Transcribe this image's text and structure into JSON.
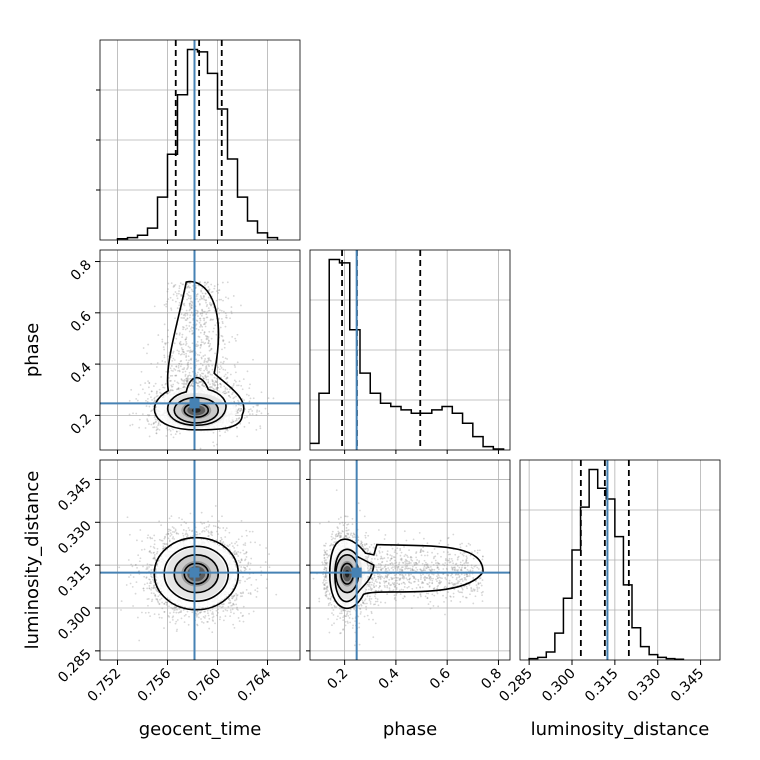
{
  "chart_data": {
    "type": "corner",
    "parameters": [
      "geocent_time",
      "phase",
      "luminosity_distance"
    ],
    "axis_labels": {
      "x": [
        "geocent_time",
        "phase",
        "luminosity_distance"
      ],
      "y": [
        "phase",
        "luminosity_distance"
      ]
    },
    "ranges": {
      "geocent_time": [
        0.7506,
        0.7666
      ],
      "phase": [
        0.065,
        0.845
      ],
      "luminosity_distance": [
        0.2818,
        0.3518
      ]
    },
    "ticks": {
      "geocent_time": [
        0.752,
        0.756,
        0.76,
        0.764
      ],
      "phase": [
        0.2,
        0.4,
        0.6,
        0.8
      ],
      "luminosity_distance": [
        0.285,
        0.3,
        0.315,
        0.33,
        0.345
      ]
    },
    "tick_labels": {
      "geocent_time": [
        "0.752",
        "0.756",
        "0.760",
        "0.764"
      ],
      "phase": [
        "0.2",
        "0.4",
        "0.6",
        "0.8"
      ],
      "luminosity_distance": [
        "0.285",
        "0.300",
        "0.315",
        "0.330",
        "0.345"
      ]
    },
    "grid": true,
    "truth_color": "#4682b4",
    "truths": {
      "geocent_time": 0.75816,
      "phase": 0.247,
      "luminosity_distance": 0.3124
    },
    "quantiles": {
      "geocent_time": [
        0.75666,
        0.75853,
        0.76034
      ],
      "phase": [
        0.19,
        0.248,
        0.495
      ],
      "luminosity_distance": [
        0.3031,
        0.3115,
        0.3199
      ]
    },
    "histograms": {
      "geocent_time": {
        "edges": [
          0.752,
          0.7528,
          0.7536,
          0.7544,
          0.7552,
          0.756,
          0.7568,
          0.7576,
          0.7584,
          0.7592,
          0.76,
          0.7608,
          0.7616,
          0.7624,
          0.7632,
          0.764,
          0.7648
        ],
        "counts": [
          0.5,
          1,
          2,
          5,
          18,
          36,
          61,
          80,
          79,
          70,
          55,
          34,
          18,
          8,
          3,
          1
        ]
      },
      "phase": {
        "edges": [
          0.06,
          0.1,
          0.14,
          0.18,
          0.22,
          0.26,
          0.3,
          0.34,
          0.38,
          0.42,
          0.46,
          0.5,
          0.54,
          0.58,
          0.62,
          0.66,
          0.7,
          0.74,
          0.78,
          0.82
        ],
        "counts": [
          2,
          17,
          57,
          56,
          36,
          23,
          17,
          14,
          13,
          12,
          11,
          11,
          12,
          13,
          11,
          8,
          4,
          1,
          0.3
        ]
      },
      "luminosity_distance": {
        "edges": [
          0.285,
          0.288,
          0.291,
          0.294,
          0.297,
          0.3,
          0.303,
          0.306,
          0.309,
          0.312,
          0.315,
          0.318,
          0.321,
          0.324,
          0.327,
          0.33,
          0.333,
          0.336,
          0.339
        ],
        "counts": [
          0.5,
          1,
          3,
          10,
          23,
          41,
          57,
          71,
          64,
          60,
          46,
          28,
          12,
          5,
          2,
          1,
          0.5,
          0.3
        ]
      }
    },
    "posterior_2d": [
      {
        "x": "geocent_time",
        "y": "phase",
        "center": [
          0.7583,
          0.22
        ],
        "spread": [
          0.0016,
          0.045
        ],
        "tail_to": 0.72
      },
      {
        "x": "geocent_time",
        "y": "luminosity_distance",
        "center": [
          0.7583,
          0.312
        ],
        "spread": [
          0.0016,
          0.006
        ]
      },
      {
        "x": "phase",
        "y": "luminosity_distance",
        "center": [
          0.21,
          0.312
        ],
        "spread": [
          0.04,
          0.006
        ],
        "tail_to": 0.74
      }
    ]
  }
}
